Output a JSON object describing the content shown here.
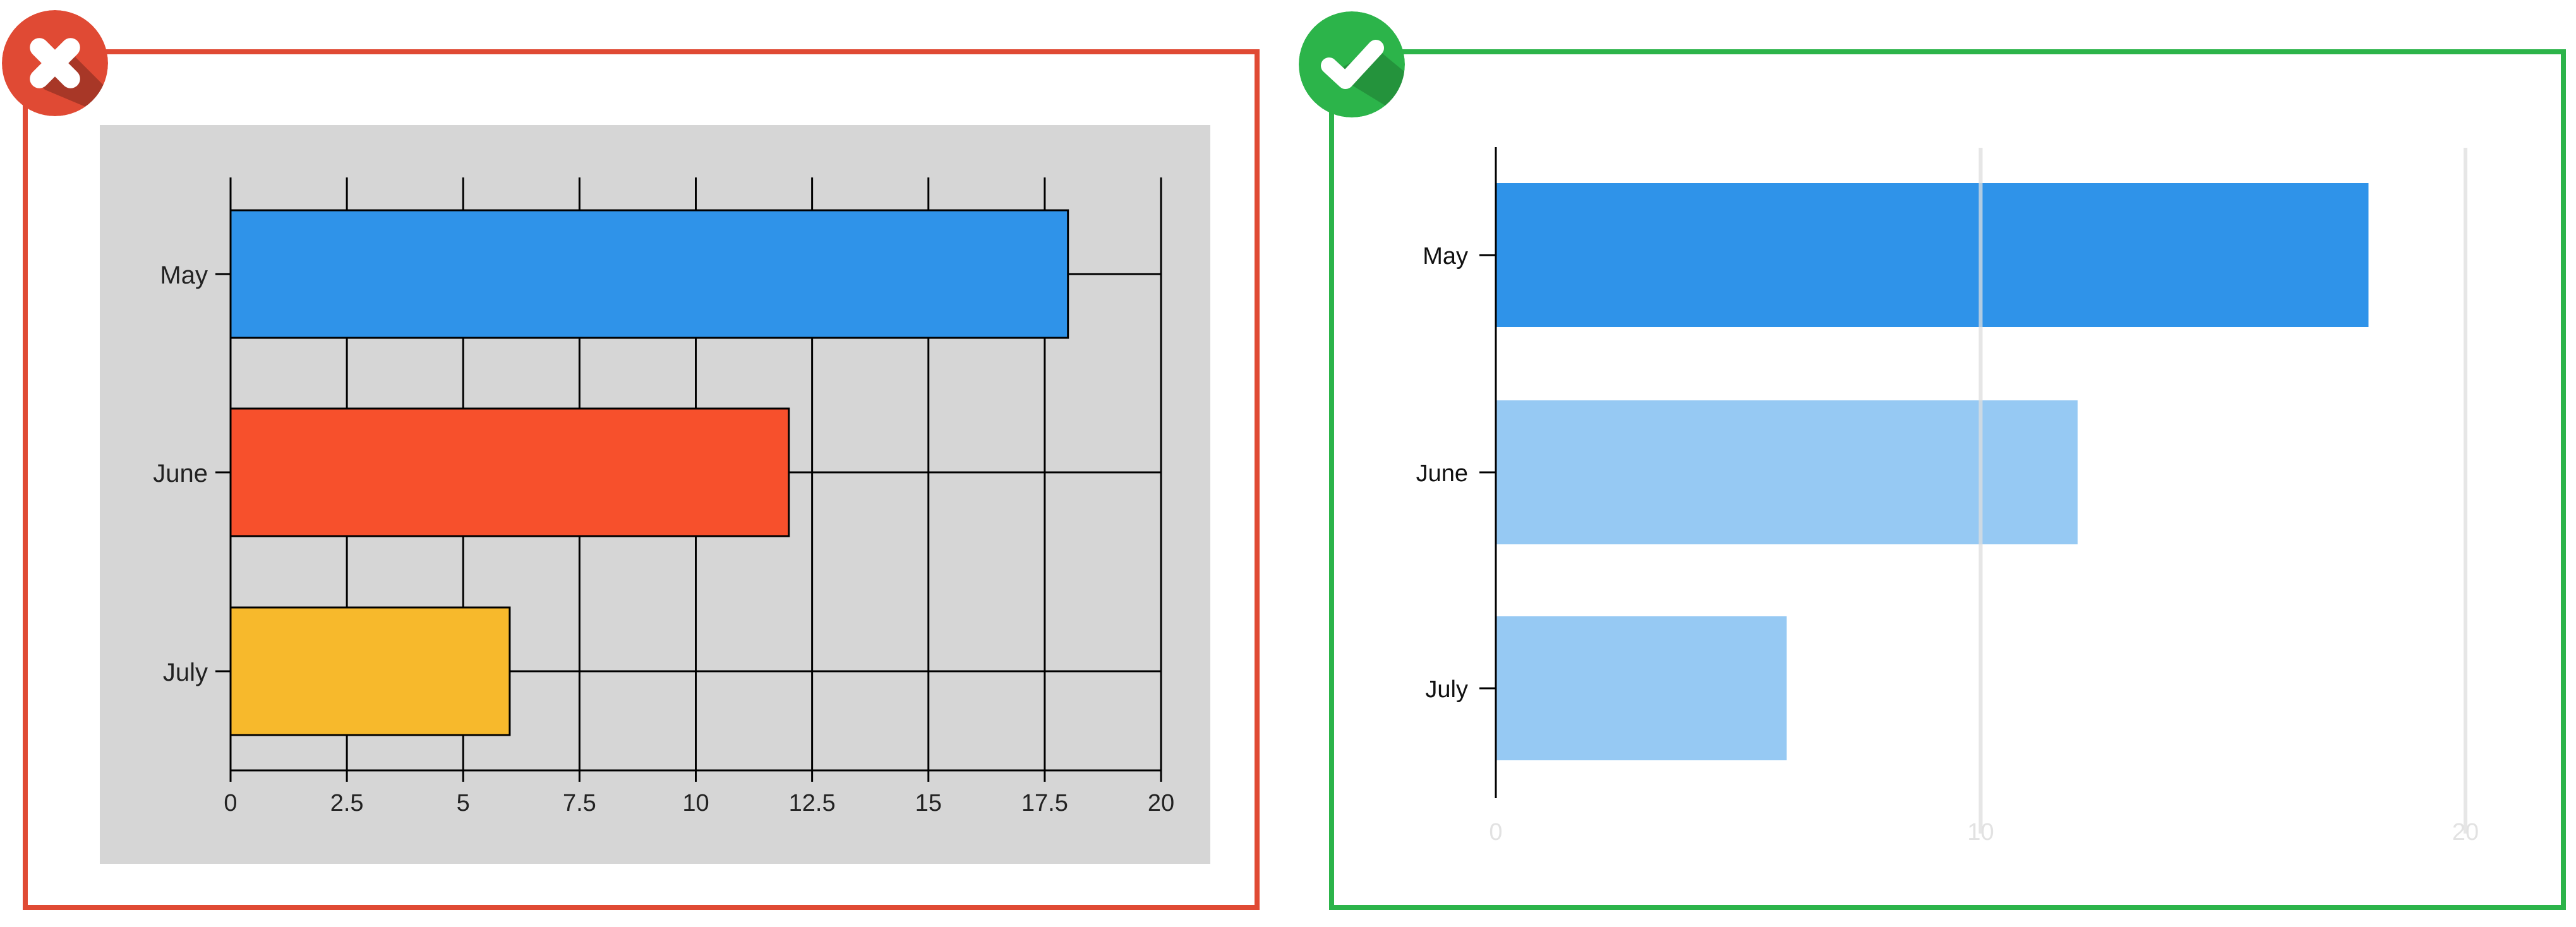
{
  "colors": {
    "bad_accent": "#e04a34",
    "good_accent": "#2cb44a",
    "bad_bg": "#d6d6d6",
    "may_bar": "#2f93e9",
    "june_bar_bad": "#f7502c",
    "july_bar_bad": "#f7b92c",
    "good_secondary_bar": "#96c9f3",
    "good_gridline": "#dddddd",
    "good_tick_text": "#e2e2e2"
  },
  "badges": {
    "bad_icon": "close-icon",
    "good_icon": "checkmark-icon"
  },
  "chart_data": [
    {
      "type": "bar",
      "orientation": "horizontal",
      "variant": "bad-example",
      "categories": [
        "May",
        "June",
        "July"
      ],
      "values": [
        18,
        12,
        6
      ],
      "xlim": [
        0,
        20
      ],
      "xticks": [
        "0",
        "2.5",
        "5",
        "7.5",
        "10",
        "12.5",
        "15",
        "17.5",
        "20"
      ],
      "grid": true,
      "background": "gray"
    },
    {
      "type": "bar",
      "orientation": "horizontal",
      "variant": "good-example",
      "categories": [
        "May",
        "June",
        "July"
      ],
      "values": [
        18,
        12,
        6
      ],
      "xlim": [
        0,
        20
      ],
      "xticks": [
        "0",
        "10",
        "20"
      ],
      "grid": true,
      "highlighted_category": "May"
    }
  ]
}
